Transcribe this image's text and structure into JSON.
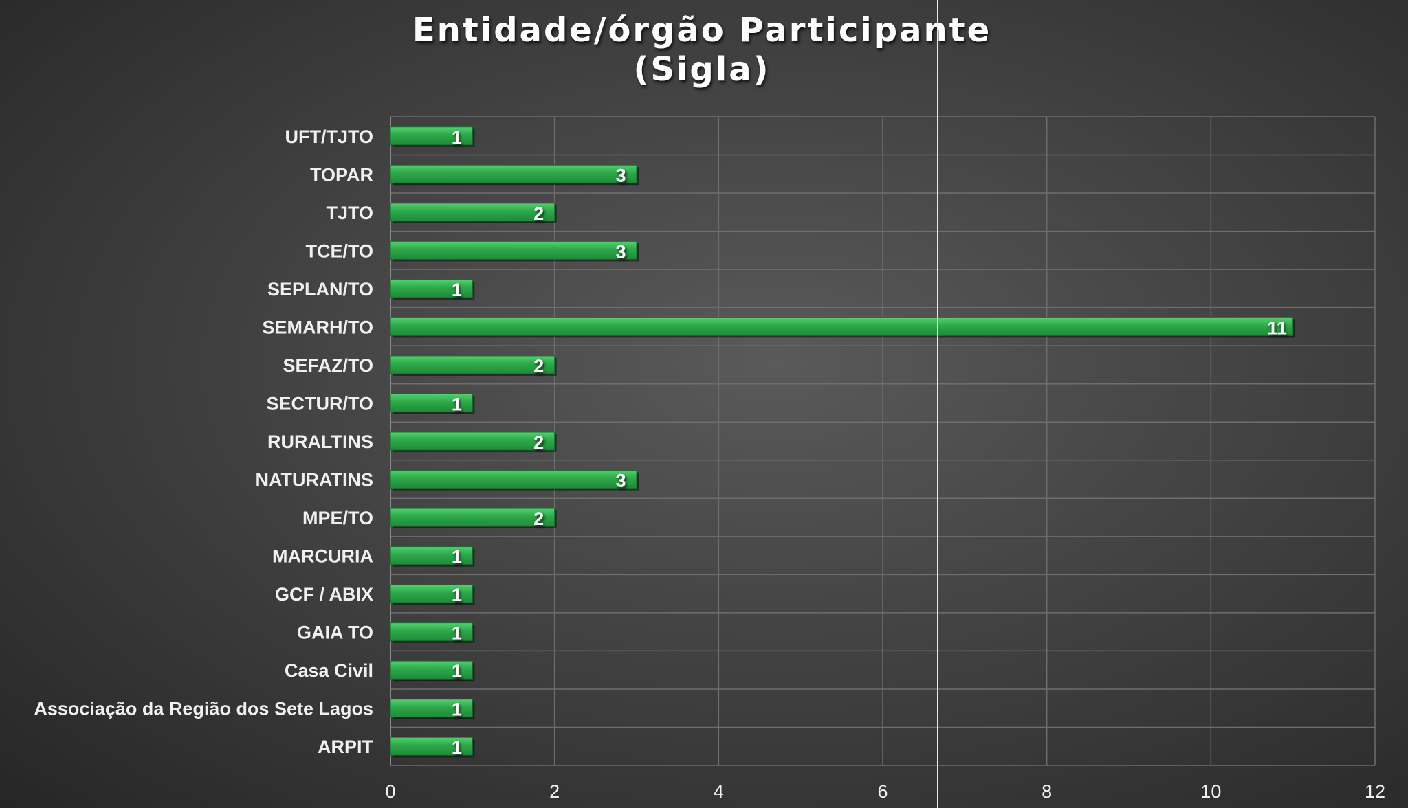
{
  "chart_data": {
    "type": "bar",
    "orientation": "horizontal",
    "title": [
      "Entidade/órgão Participante",
      "(Sigla)"
    ],
    "categories": [
      "UFT/TJTO",
      "TOPAR",
      "TJTO",
      "TCE/TO",
      "SEPLAN/TO",
      "SEMARH/TO",
      "SEFAZ/TO",
      "SECTUR/TO",
      "RURALTINS",
      "NATURATINS",
      "MPE/TO",
      "MARCURIA",
      "GCF / ABIX",
      "GAIA TO",
      "Casa Civil",
      "Associação da Região dos Sete Lagos",
      "ARPIT"
    ],
    "values": [
      1,
      3,
      2,
      3,
      1,
      11,
      2,
      1,
      2,
      3,
      2,
      1,
      1,
      1,
      1,
      1,
      1
    ],
    "xlim": [
      0,
      12
    ],
    "xticks": [
      0,
      2,
      4,
      6,
      8,
      10,
      12
    ],
    "grid": true,
    "legend": "none",
    "colors": {
      "bar": "#2ea84a",
      "bar_highlight": "#4cc766",
      "bar_shadow": "#1c7a33",
      "grid": "#6e6e6e",
      "text": "#f0f0f0"
    }
  }
}
